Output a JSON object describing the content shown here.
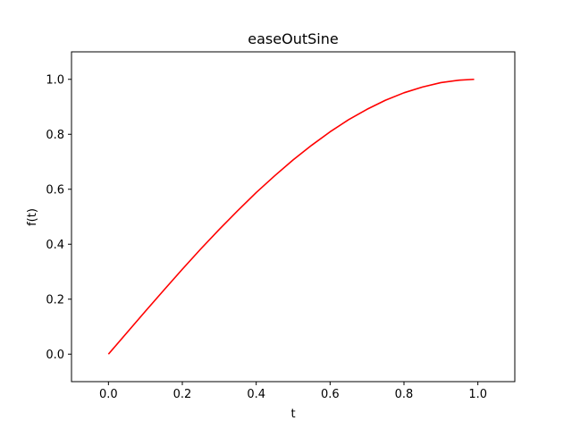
{
  "chart_data": {
    "type": "line",
    "title": "easeOutSine",
    "xlabel": "t",
    "ylabel": "f(t)",
    "xlim": [
      -0.1,
      1.1
    ],
    "ylim": [
      -0.1,
      1.1
    ],
    "x_ticks": [
      "0.0",
      "0.2",
      "0.4",
      "0.6",
      "0.8",
      "1.0"
    ],
    "y_ticks": [
      "0.0",
      "0.2",
      "0.4",
      "0.6",
      "0.8",
      "1.0"
    ],
    "grid": false,
    "legend": "none",
    "series": [
      {
        "color": "#ff0000",
        "x": [
          0.0,
          0.05,
          0.1,
          0.15,
          0.2,
          0.25,
          0.3,
          0.35,
          0.4,
          0.45,
          0.5,
          0.55,
          0.6,
          0.65,
          0.7,
          0.75,
          0.8,
          0.85,
          0.9,
          0.95,
          0.99
        ],
        "y": [
          0.0,
          0.078,
          0.156,
          0.233,
          0.309,
          0.383,
          0.454,
          0.522,
          0.588,
          0.649,
          0.707,
          0.76,
          0.809,
          0.853,
          0.891,
          0.924,
          0.951,
          0.972,
          0.988,
          0.997,
          1.0
        ]
      }
    ]
  }
}
